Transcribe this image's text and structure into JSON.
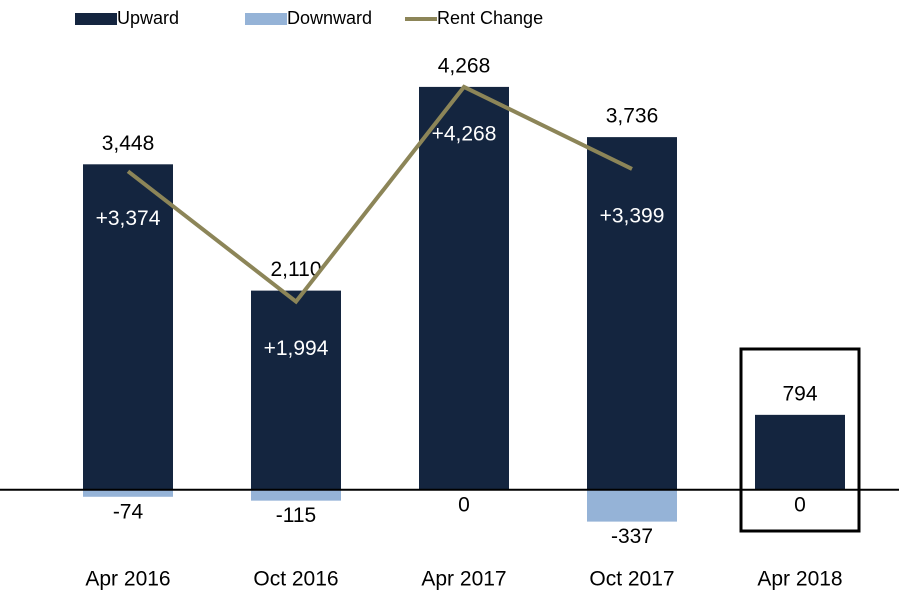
{
  "chart_data": {
    "type": "bar",
    "categories": [
      "Apr 2016",
      "Oct 2016",
      "Apr 2017",
      "Oct 2017",
      "Apr 2018"
    ],
    "series": [
      {
        "name": "Upward",
        "color": "#14253f",
        "values": [
          3448,
          2110,
          4268,
          3736,
          794
        ],
        "value_labels": [
          "3,448",
          "2,110",
          "4,268",
          "3,736",
          "794"
        ]
      },
      {
        "name": "Downward",
        "color": "#95b3d7",
        "values": [
          -74,
          -115,
          0,
          -337,
          0
        ]
      },
      {
        "name": "Rent Change",
        "type": "line",
        "color": "#8c8558",
        "values": [
          3374,
          1994,
          4268,
          3399,
          null
        ],
        "value_labels": [
          "+3,374",
          "+1,994",
          "+4,268",
          "+3,399",
          null
        ]
      }
    ],
    "ylim": [
      -500,
      4500
    ]
  }
}
